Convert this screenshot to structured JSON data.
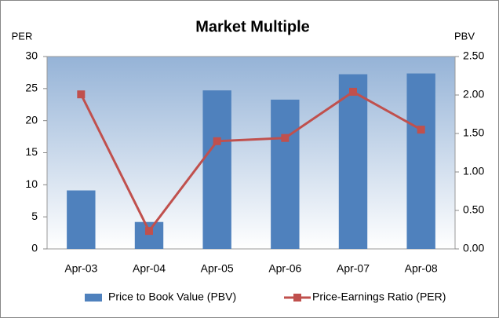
{
  "chart_data": {
    "type": "bar",
    "title": "Market Multiple",
    "y_label": "PER",
    "y2_label": "PBV",
    "categories": [
      "Apr-03",
      "Apr-04",
      "Apr-05",
      "Apr-06",
      "Apr-07",
      "Apr-08"
    ],
    "series": [
      {
        "name": "Price to Book Value (PBV)",
        "type": "bar",
        "axis": "y2",
        "color": "#4f81bd",
        "values": [
          0.76,
          0.35,
          2.06,
          1.94,
          2.27,
          2.28
        ]
      },
      {
        "name": "Price-Earnings Ratio (PER)",
        "type": "line",
        "color": "#c0504d",
        "values": [
          24.1,
          2.8,
          16.8,
          17.3,
          24.5,
          18.6
        ]
      }
    ],
    "ylim": [
      0,
      30
    ],
    "yticks": [
      0,
      5,
      10,
      15,
      20,
      25,
      30
    ],
    "y2lim": [
      0,
      2.5
    ],
    "y2ticks": [
      {
        "value": 0,
        "label": "0.00"
      },
      {
        "value": 0.5,
        "label": "0.50"
      },
      {
        "value": 1,
        "label": "1.00"
      },
      {
        "value": 1.5,
        "label": "1.50"
      },
      {
        "value": 2,
        "label": "2.00"
      },
      {
        "value": 2.5,
        "label": "2.50"
      }
    ],
    "legend": "bottom"
  }
}
